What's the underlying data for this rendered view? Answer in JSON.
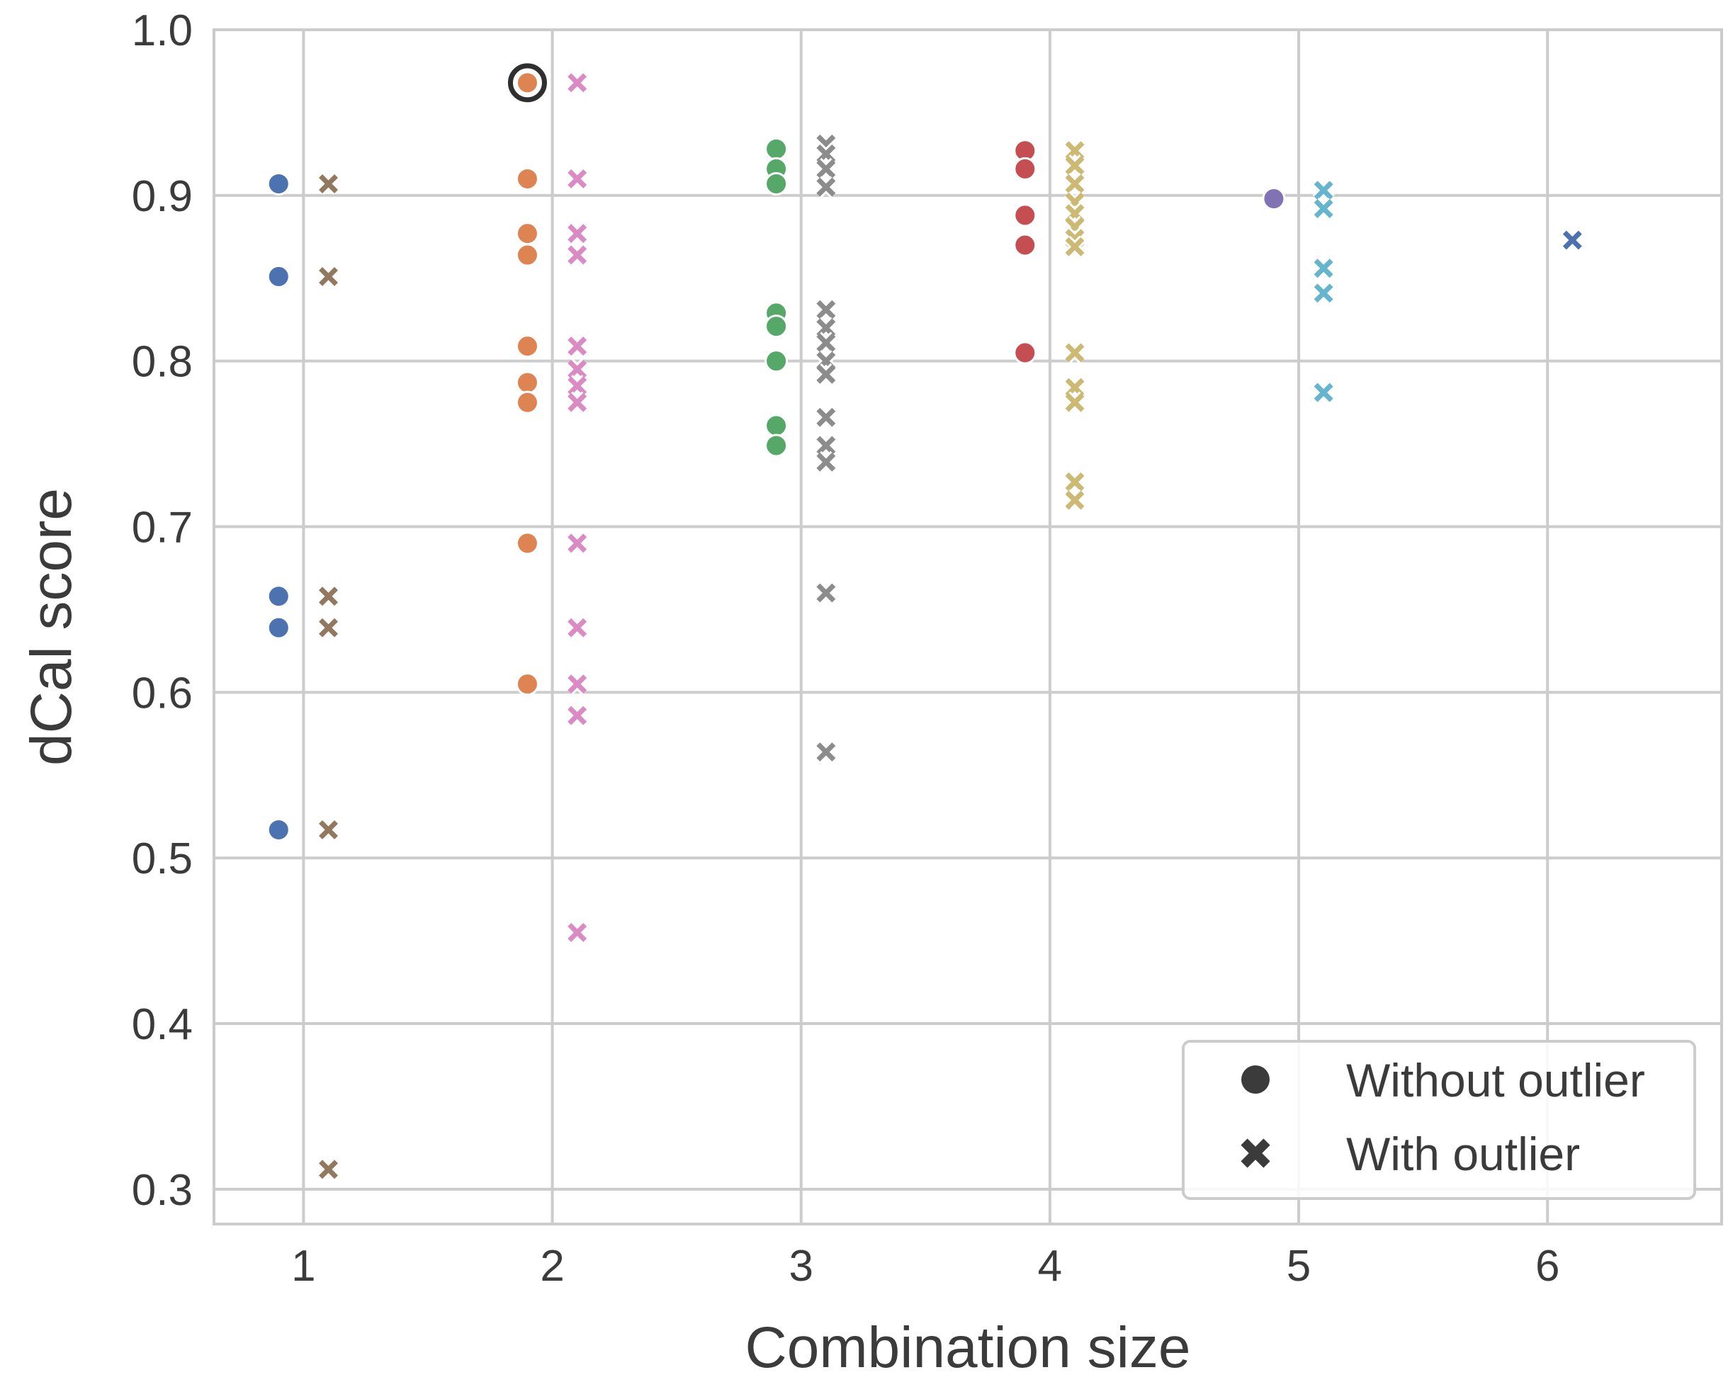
{
  "chart_data": {
    "type": "scatter",
    "title": "",
    "xlabel": "Combination size",
    "ylabel": "dCal score",
    "xlim": [
      0.64,
      6.7
    ],
    "ylim": [
      0.279,
      1.0
    ],
    "xticks": [
      1,
      2,
      3,
      4,
      5,
      6
    ],
    "xtick_labels": [
      "1",
      "2",
      "3",
      "4",
      "5",
      "6"
    ],
    "yticks": [
      0.3,
      0.4,
      0.5,
      0.6,
      0.7,
      0.8,
      0.9,
      1.0
    ],
    "ytick_labels": [
      "0.3",
      "0.4",
      "0.5",
      "0.6",
      "0.7",
      "0.8",
      "0.9",
      "1.0"
    ],
    "grid": true,
    "legend_position": "bottom-right",
    "legend": [
      {
        "marker": "circle",
        "label": "Without outlier"
      },
      {
        "marker": "x",
        "label": "With outlier"
      }
    ],
    "highlight": {
      "x": 1.9,
      "y": 0.968,
      "marker": "ring"
    },
    "series": [
      {
        "name": "size 1 without outlier",
        "marker": "circle",
        "color": "#4C72B0",
        "x": 0.9,
        "y": [
          0.907,
          0.851,
          0.658,
          0.639,
          0.517
        ]
      },
      {
        "name": "size 1 with outlier",
        "marker": "x",
        "color": "#937860",
        "x": 1.1,
        "y": [
          0.907,
          0.851,
          0.658,
          0.639,
          0.517,
          0.312
        ]
      },
      {
        "name": "size 2 without outlier",
        "marker": "circle",
        "color": "#DD8452",
        "x": 1.9,
        "y": [
          0.968,
          0.91,
          0.877,
          0.864,
          0.809,
          0.787,
          0.775,
          0.69,
          0.605
        ]
      },
      {
        "name": "size 2 with outlier",
        "marker": "x",
        "color": "#DA8BC3",
        "x": 2.1,
        "y": [
          0.968,
          0.91,
          0.877,
          0.864,
          0.809,
          0.795,
          0.785,
          0.775,
          0.69,
          0.639,
          0.605,
          0.586,
          0.455
        ]
      },
      {
        "name": "size 3 without outlier",
        "marker": "circle",
        "color": "#55A868",
        "x": 2.9,
        "y": [
          0.928,
          0.916,
          0.907,
          0.829,
          0.821,
          0.8,
          0.761,
          0.749
        ]
      },
      {
        "name": "size 3 with outlier",
        "marker": "x",
        "color": "#8C8C8C",
        "x": 3.1,
        "y": [
          0.931,
          0.925,
          0.916,
          0.905,
          0.831,
          0.82,
          0.811,
          0.8,
          0.792,
          0.766,
          0.749,
          0.739,
          0.66,
          0.564
        ]
      },
      {
        "name": "size 4 without outlier",
        "marker": "circle",
        "color": "#C44E52",
        "x": 3.9,
        "y": [
          0.927,
          0.916,
          0.888,
          0.87,
          0.805
        ]
      },
      {
        "name": "size 4 with outlier",
        "marker": "x",
        "color": "#CCB974",
        "x": 4.1,
        "y": [
          0.927,
          0.918,
          0.907,
          0.896,
          0.889,
          0.881,
          0.874,
          0.869,
          0.805,
          0.784,
          0.775,
          0.727,
          0.716
        ]
      },
      {
        "name": "size 5 without outlier",
        "marker": "circle",
        "color": "#8172B3",
        "x": 4.9,
        "y": [
          0.898
        ]
      },
      {
        "name": "size 5 with outlier",
        "marker": "x",
        "color": "#64B5CD",
        "x": 5.1,
        "y": [
          0.903,
          0.892,
          0.856,
          0.841,
          0.781
        ]
      },
      {
        "name": "size 6 with outlier",
        "marker": "x",
        "color": "#4C72B0",
        "x": 6.1,
        "y": [
          0.873
        ]
      }
    ]
  }
}
